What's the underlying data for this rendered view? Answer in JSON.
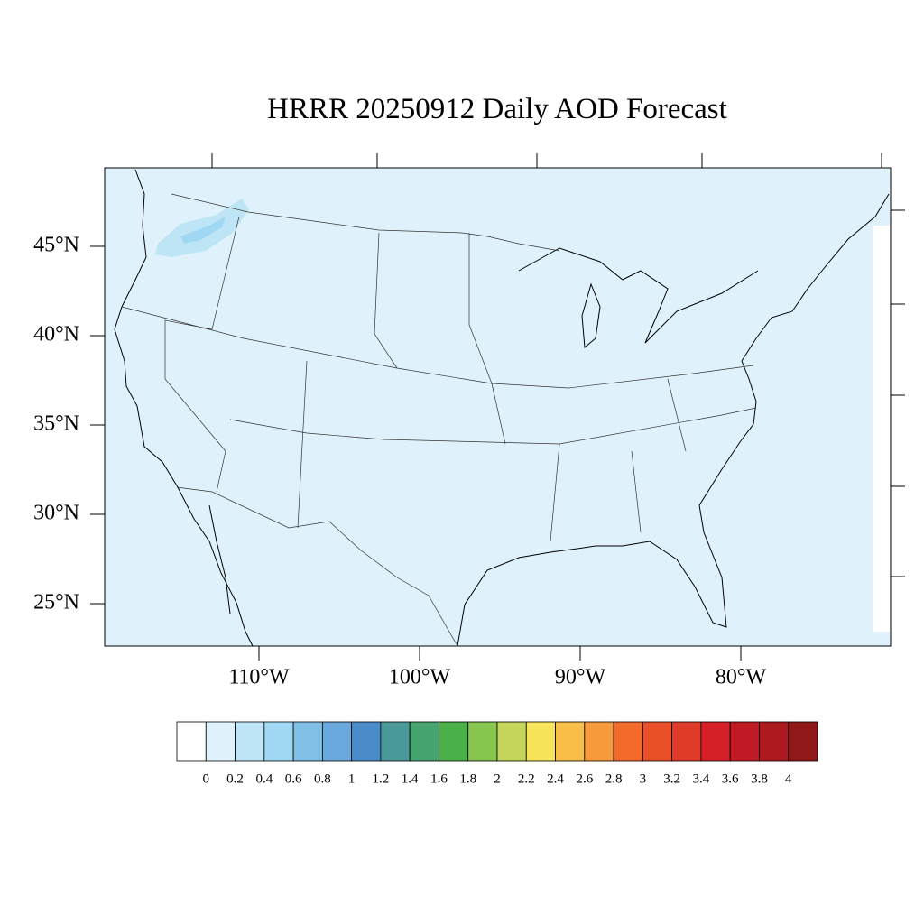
{
  "map": {
    "title": "HRRR 20250912 Daily AOD Forecast",
    "lat_ticks": [
      {
        "value": 45,
        "label": "45°N"
      },
      {
        "value": 40,
        "label": "40°N"
      },
      {
        "value": 35,
        "label": "35°N"
      },
      {
        "value": 30,
        "label": "30°N"
      },
      {
        "value": 25,
        "label": "25°N"
      }
    ],
    "lon_ticks": [
      {
        "value": -110,
        "label": "110°W"
      },
      {
        "value": -100,
        "label": "100°W"
      },
      {
        "value": -90,
        "label": "90°W"
      },
      {
        "value": -80,
        "label": "80°W"
      }
    ],
    "colorbar": {
      "levels": [
        0,
        0.2,
        0.4,
        0.6,
        0.8,
        1,
        1.2,
        1.4,
        1.6,
        1.8,
        2,
        2.2,
        2.4,
        2.6,
        2.8,
        3,
        3.2,
        3.4,
        3.6,
        3.8,
        4
      ],
      "colors": [
        "#ffffff",
        "#dff2fb",
        "#bde5f6",
        "#a0d8f3",
        "#80bfe6",
        "#68a8dc",
        "#4a8cc9",
        "#4a9a9a",
        "#46a56e",
        "#4ab048",
        "#86c54e",
        "#c3d65a",
        "#f8e45a",
        "#f8be48",
        "#f79a3c",
        "#f26b2a",
        "#ea5028",
        "#e03a28",
        "#d62028",
        "#c01a24",
        "#ac1a20",
        "#901818"
      ]
    }
  }
}
